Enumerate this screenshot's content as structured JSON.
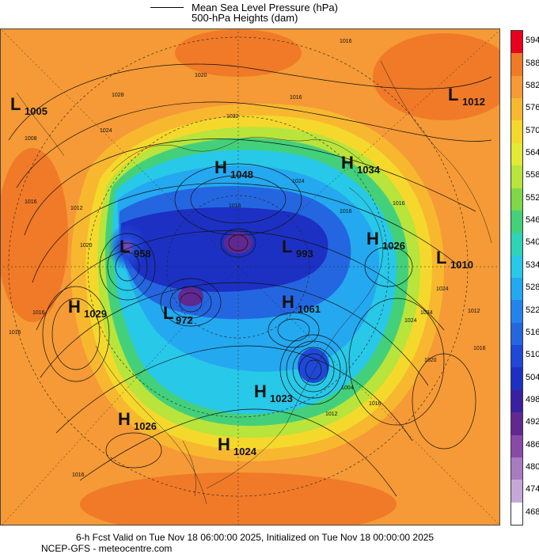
{
  "legend": {
    "mslp_label": "Mean Sea Level Pressure (hPa)",
    "heights_label": "500-hPa Heights (dam)"
  },
  "pressure_centers": [
    {
      "type": "L",
      "value": "1005"
    },
    {
      "type": "L",
      "value": "1012"
    },
    {
      "type": "H",
      "value": "1048"
    },
    {
      "type": "H",
      "value": "1034"
    },
    {
      "type": "L",
      "value": "958"
    },
    {
      "type": "L",
      "value": "993"
    },
    {
      "type": "H",
      "value": "1026"
    },
    {
      "type": "L",
      "value": "1010"
    },
    {
      "type": "H",
      "value": "1029"
    },
    {
      "type": "L",
      "value": "972"
    },
    {
      "type": "H",
      "value": "1061"
    },
    {
      "type": "H",
      "value": "1023"
    },
    {
      "type": "H",
      "value": "1026"
    },
    {
      "type": "H",
      "value": "1024"
    }
  ],
  "colorbar": {
    "levels": [
      "594",
      "588",
      "582",
      "576",
      "570",
      "564",
      "558",
      "552",
      "546",
      "540",
      "534",
      "528",
      "522",
      "516",
      "510",
      "504",
      "498",
      "492",
      "486",
      "480",
      "474",
      "468"
    ],
    "colors": [
      "#e8001e",
      "#f07a28",
      "#f59a36",
      "#f7b830",
      "#f5d82c",
      "#e2ea34",
      "#b8e43c",
      "#7ed84a",
      "#44d07a",
      "#2ed4b8",
      "#28c8e8",
      "#24a8f0",
      "#2484ec",
      "#2466e0",
      "#1f48d8",
      "#1c30c4",
      "#3a20a0",
      "#602890",
      "#8a4aa8",
      "#a87cc0",
      "#c6a8d6",
      "#ffffff"
    ]
  },
  "footer": {
    "line1": "6-h Fcst Valid on Tue Nov 18 06:00:00 2025, Initialized on Tue Nov 18 00:00:00 2025",
    "line2": "NCEP-GFS  - meteocentre.com"
  },
  "contour_labels": [
    "1016",
    "1020",
    "1008",
    "1016",
    "1024",
    "1028",
    "1032",
    "1016",
    "1024",
    "1016",
    "1012",
    "1020",
    "1016",
    "1016",
    "1016",
    "1016",
    "1024",
    "1012",
    "1020",
    "1016",
    "1024",
    "1024",
    "1004",
    "1016",
    "1012",
    "1016"
  ]
}
